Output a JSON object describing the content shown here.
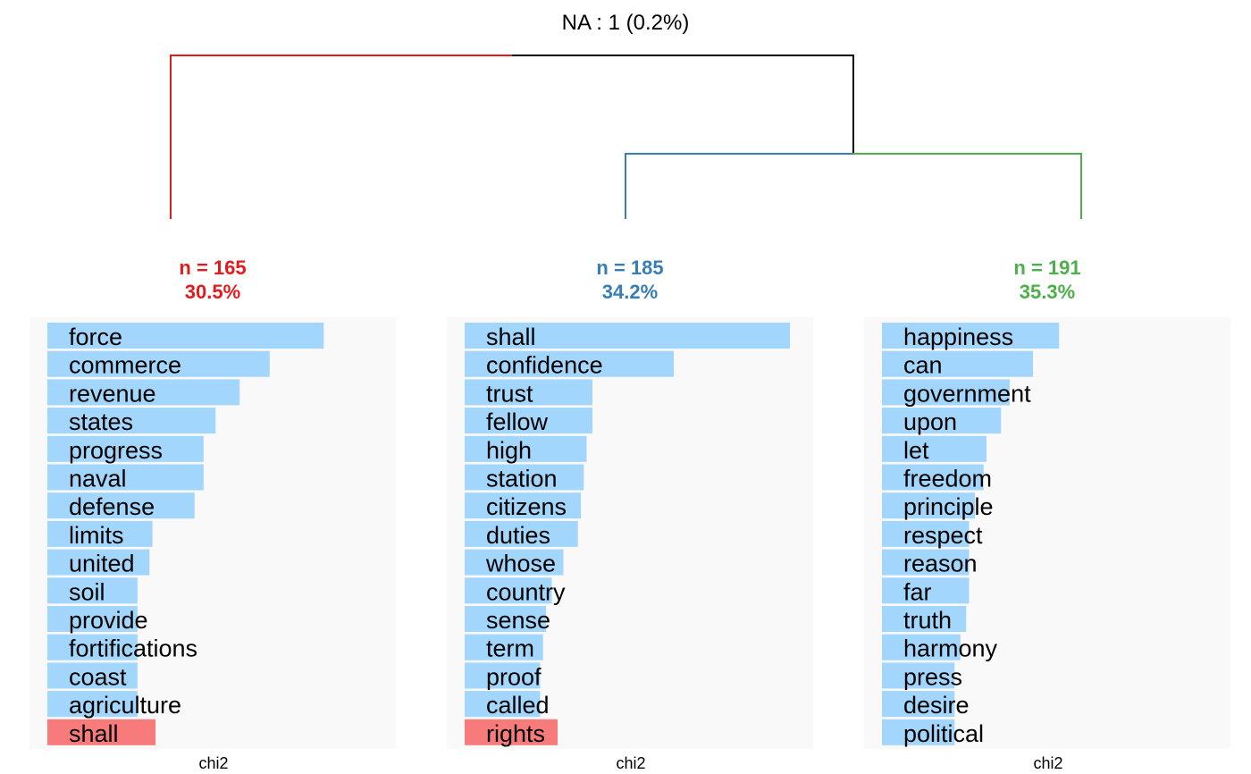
{
  "header": {
    "na_label": "NA : 1 (0.2%)"
  },
  "colors": {
    "cluster_1": "#e41a1c",
    "cluster_2": "#377eb8",
    "cluster_3": "#4daf4a",
    "bar_positive": "#a3d6fc",
    "bar_negative": "#f77b7b",
    "panel_bg": "#f9f9f9",
    "dendrogram_root": "#000000"
  },
  "chart_data": [
    {
      "type": "bar",
      "cluster_id": "1",
      "n_label": "n = 165",
      "pct_label": "30.5%",
      "xlabel": "chi2",
      "categories": [
        "force",
        "commerce",
        "revenue",
        "states",
        "progress",
        "naval",
        "defense",
        "limits",
        "united",
        "soil",
        "provide",
        "fortifications",
        "coast",
        "agriculture",
        "shall"
      ],
      "values": [
        46,
        37,
        32,
        28,
        26,
        26,
        24.5,
        17.5,
        17,
        15,
        15,
        15,
        15,
        15,
        -18
      ],
      "xlim": [
        -18,
        58
      ]
    },
    {
      "type": "bar",
      "cluster_id": "2",
      "n_label": "n = 185",
      "pct_label": "34.2%",
      "xlabel": "chi2",
      "categories": [
        "shall",
        "confidence",
        "trust",
        "fellow",
        "high",
        "station",
        "citizens",
        "duties",
        "whose",
        "country",
        "sense",
        "term",
        "proof",
        "called",
        "rights"
      ],
      "values": [
        56,
        36,
        22,
        22,
        21,
        20.5,
        20,
        19.5,
        17,
        15,
        14,
        13.5,
        13,
        13,
        -16
      ],
      "xlim": [
        -16,
        60
      ]
    },
    {
      "type": "bar",
      "cluster_id": "3",
      "n_label": "n = 191",
      "pct_label": "35.3%",
      "xlabel": "chi2",
      "categories": [
        "happiness",
        "can",
        "government",
        "upon",
        "let",
        "freedom",
        "principle",
        "respect",
        "reason",
        "far",
        "truth",
        "harmony",
        "press",
        "desire",
        "political"
      ],
      "values": [
        30.5,
        26,
        22,
        20.5,
        18,
        17.5,
        16,
        15,
        15,
        15,
        14.5,
        13.5,
        12.5,
        12.5,
        12.5
      ],
      "xlim": [
        0,
        60
      ]
    }
  ]
}
